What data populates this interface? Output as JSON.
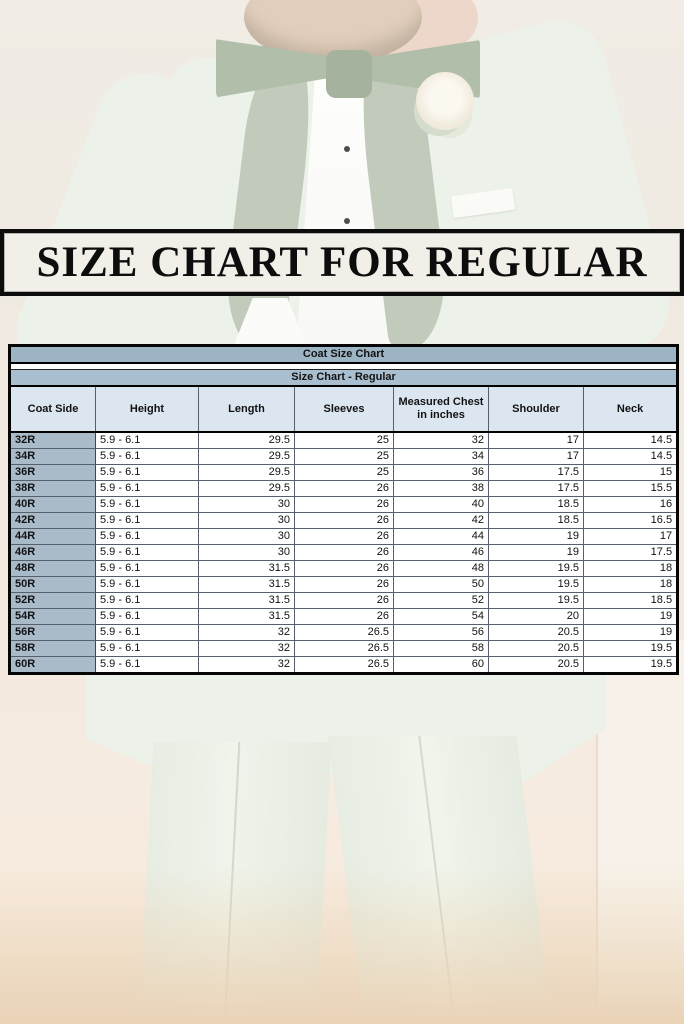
{
  "banner": {
    "title": "SIZE CHART FOR REGULAR"
  },
  "size_table": {
    "title": "Coat Size Chart",
    "subtitle": "Size Chart - Regular",
    "columns": [
      "Coat Side",
      "Height",
      "Length",
      "Sleeves",
      "Measured Chest in inches",
      "Shoulder",
      "Neck"
    ],
    "rows": [
      [
        "32R",
        "5.9 - 6.1",
        "29.5",
        "25",
        "32",
        "17",
        "14.5"
      ],
      [
        "34R",
        "5.9 - 6.1",
        "29.5",
        "25",
        "34",
        "17",
        "14.5"
      ],
      [
        "36R",
        "5.9 - 6.1",
        "29.5",
        "25",
        "36",
        "17.5",
        "15"
      ],
      [
        "38R",
        "5.9 - 6.1",
        "29.5",
        "26",
        "38",
        "17.5",
        "15.5"
      ],
      [
        "40R",
        "5.9 - 6.1",
        "30",
        "26",
        "40",
        "18.5",
        "16"
      ],
      [
        "42R",
        "5.9 - 6.1",
        "30",
        "26",
        "42",
        "18.5",
        "16.5"
      ],
      [
        "44R",
        "5.9 - 6.1",
        "30",
        "26",
        "44",
        "19",
        "17"
      ],
      [
        "46R",
        "5.9 - 6.1",
        "30",
        "26",
        "46",
        "19",
        "17.5"
      ],
      [
        "48R",
        "5.9 - 6.1",
        "31.5",
        "26",
        "48",
        "19.5",
        "18"
      ],
      [
        "50R",
        "5.9 - 6.1",
        "31.5",
        "26",
        "50",
        "19.5",
        "18"
      ],
      [
        "52R",
        "5.9 - 6.1",
        "31.5",
        "26",
        "52",
        "19.5",
        "18.5"
      ],
      [
        "54R",
        "5.9 - 6.1",
        "31.5",
        "26",
        "54",
        "20",
        "19"
      ],
      [
        "56R",
        "5.9 - 6.1",
        "32",
        "26.5",
        "56",
        "20.5",
        "19"
      ],
      [
        "58R",
        "5.9 - 6.1",
        "32",
        "26.5",
        "58",
        "20.5",
        "19.5"
      ],
      [
        "60R",
        "5.9 - 6.1",
        "32",
        "26.5",
        "60",
        "20.5",
        "19.5"
      ]
    ]
  },
  "colors": {
    "suit_green": "#e9efe5",
    "lapel_sage": "#b7c2ae",
    "bowtie_sage": "#a3b29a",
    "table_title_bg": "#9db4c5",
    "subtitle_bg": "#a9bfcf",
    "header_bg": "#dce6f1",
    "row_label_bg": "#a9bac9",
    "banner_bg": "#f2efe9"
  }
}
